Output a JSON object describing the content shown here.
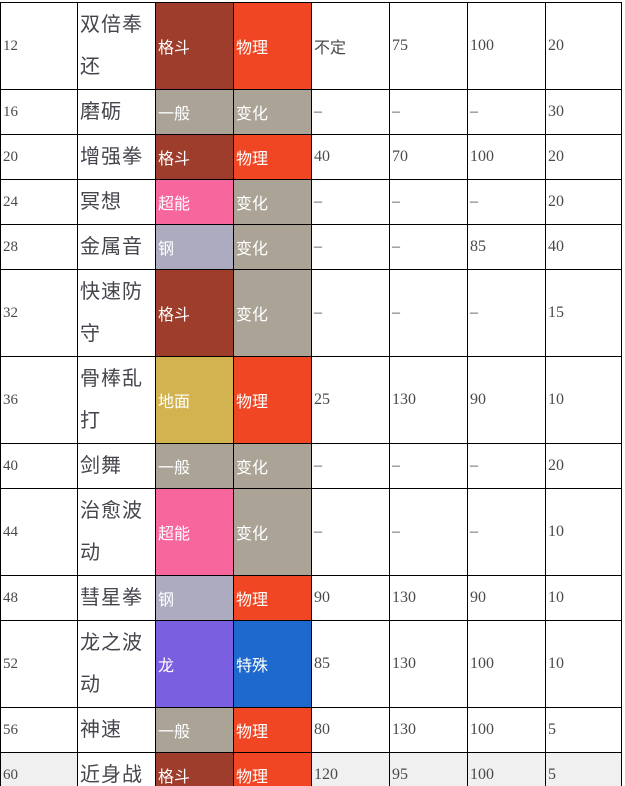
{
  "table": {
    "description": "pokemon-level-up-moves-table",
    "columns": [
      "level",
      "move_name",
      "move_type",
      "damage_category",
      "power",
      "stat",
      "accuracy",
      "pp"
    ],
    "dash": "–",
    "type_colors": {
      "格斗": "#9e3d2b",
      "一般": "#aaa396",
      "超能": "#f7679e",
      "钢": "#acabc0",
      "地面": "#d3b350",
      "龙": "#7a60e0"
    },
    "category_colors": {
      "物理": "#f04623",
      "变化": "#aaa396",
      "特殊": "#1e69ce"
    },
    "highlight_color": "#f0f0f0",
    "rows": [
      {
        "cells": [
          "12",
          "双倍奉还",
          "格斗",
          "物理",
          "不定",
          "75",
          "100",
          "20"
        ],
        "highlighted": false
      },
      {
        "cells": [
          "16",
          "磨砺",
          "一般",
          "变化",
          "–",
          "–",
          "–",
          "30"
        ],
        "highlighted": false
      },
      {
        "cells": [
          "20",
          "增强拳",
          "格斗",
          "物理",
          "40",
          "70",
          "100",
          "20"
        ],
        "highlighted": false
      },
      {
        "cells": [
          "24",
          "冥想",
          "超能",
          "变化",
          "–",
          "–",
          "–",
          "20"
        ],
        "highlighted": false
      },
      {
        "cells": [
          "28",
          "金属音",
          "钢",
          "变化",
          "–",
          "–",
          "85",
          "40"
        ],
        "highlighted": false
      },
      {
        "cells": [
          "32",
          "快速防守",
          "格斗",
          "变化",
          "–",
          "–",
          "–",
          "15"
        ],
        "highlighted": false
      },
      {
        "cells": [
          "36",
          "骨棒乱打",
          "地面",
          "物理",
          "25",
          "130",
          "90",
          "10"
        ],
        "highlighted": false
      },
      {
        "cells": [
          "40",
          "剑舞",
          "一般",
          "变化",
          "–",
          "–",
          "–",
          "20"
        ],
        "highlighted": false
      },
      {
        "cells": [
          "44",
          "治愈波动",
          "超能",
          "变化",
          "–",
          "–",
          "–",
          "10"
        ],
        "highlighted": false
      },
      {
        "cells": [
          "48",
          "彗星拳",
          "钢",
          "物理",
          "90",
          "130",
          "90",
          "10"
        ],
        "highlighted": false
      },
      {
        "cells": [
          "52",
          "龙之波动",
          "龙",
          "特殊",
          "85",
          "130",
          "100",
          "10"
        ],
        "highlighted": false
      },
      {
        "cells": [
          "56",
          "神速",
          "一般",
          "物理",
          "80",
          "130",
          "100",
          "5"
        ],
        "highlighted": false
      },
      {
        "cells": [
          "60",
          "近身战",
          "格斗",
          "物理",
          "120",
          "95",
          "100",
          "5"
        ],
        "highlighted": true
      }
    ]
  }
}
